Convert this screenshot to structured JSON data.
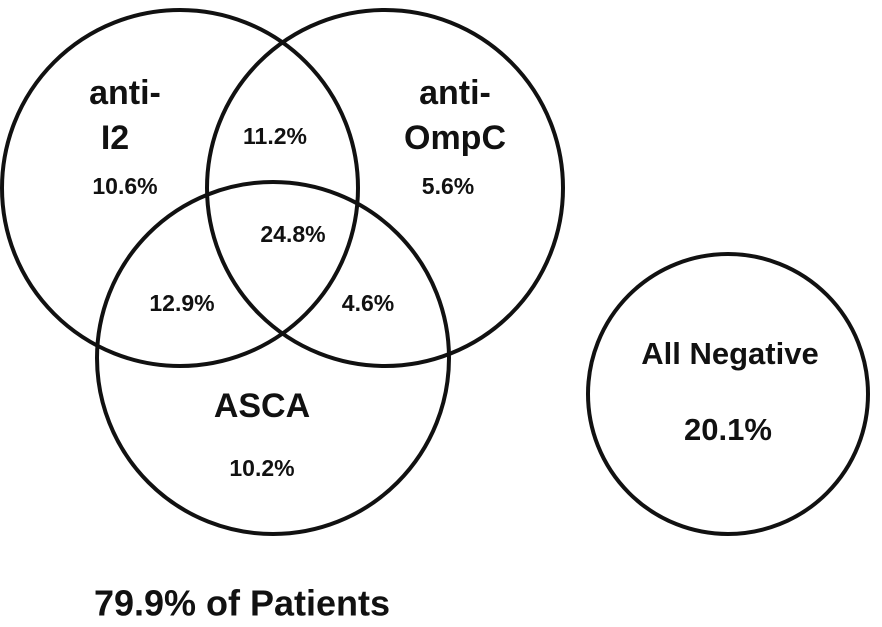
{
  "sets": [
    {
      "label_lines": [
        "anti-",
        "I2"
      ],
      "only": "10.6%"
    },
    {
      "label_lines": [
        "anti-",
        "OmpC"
      ],
      "only": "5.6%"
    },
    {
      "label_lines": [
        "ASCA"
      ],
      "only": "10.2%"
    }
  ],
  "overlaps": {
    "i2_ompc": "11.2%",
    "all_three": "24.8%",
    "i2_asca": "12.9%",
    "ompc_asca": "4.6%"
  },
  "negative": {
    "label": "All Negative",
    "value": "20.1%"
  },
  "footer": "79.9% of Patients"
}
